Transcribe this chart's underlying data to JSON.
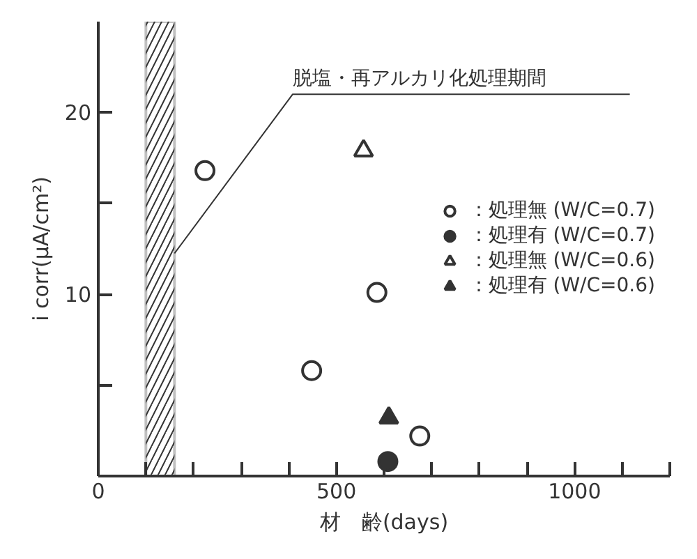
{
  "chart_data": {
    "type": "scatter",
    "xlabel": "材　齢(days)",
    "ylabel": "i corr(μA/cm²)",
    "xlim": [
      0,
      1200
    ],
    "ylim": [
      0,
      25
    ],
    "xticks": [
      0,
      {
        "value": 100,
        "label": null
      },
      {
        "value": 200,
        "label": null
      },
      {
        "value": 300,
        "label": null
      },
      {
        "value": 400,
        "label": null
      },
      500,
      {
        "value": 600,
        "label": null
      },
      {
        "value": 700,
        "label": null
      },
      {
        "value": 800,
        "label": null
      },
      {
        "value": 900,
        "label": null
      },
      1000,
      {
        "value": 1100,
        "label": null
      },
      {
        "value": 1200,
        "label": null
      }
    ],
    "yticks": [
      {
        "value": 0,
        "label": null
      },
      {
        "value": 5,
        "label": null
      },
      10,
      {
        "value": 15,
        "label": null
      },
      20
    ],
    "grid": false,
    "legend": "right",
    "bands": [
      {
        "axis": "x",
        "from": 100,
        "to": 160,
        "label": "脱塩・再アルカリ化処理期間",
        "color": "#333333"
      }
    ],
    "series": [
      {
        "name": "：処理無 (W/C=0.7)",
        "color": "#333333",
        "marker": "circle_open",
        "x": [
          224,
          448,
          585,
          675
        ],
        "values": [
          16.8,
          5.8,
          10.1,
          2.2
        ]
      },
      {
        "name": "：処理有 (W/C=0.7)",
        "color": "#333333",
        "marker": "circle",
        "x": [
          608
        ],
        "values": [
          0.8
        ]
      },
      {
        "name": "：処理無 (W/C=0.6)",
        "color": "#333333",
        "marker": "triangle_open",
        "x": [
          557
        ],
        "values": [
          17.9
        ]
      },
      {
        "name": "：処理有 (W/C=0.6)",
        "color": "#333333",
        "marker": "triangle",
        "x": [
          610
        ],
        "values": [
          3.2
        ]
      }
    ]
  }
}
